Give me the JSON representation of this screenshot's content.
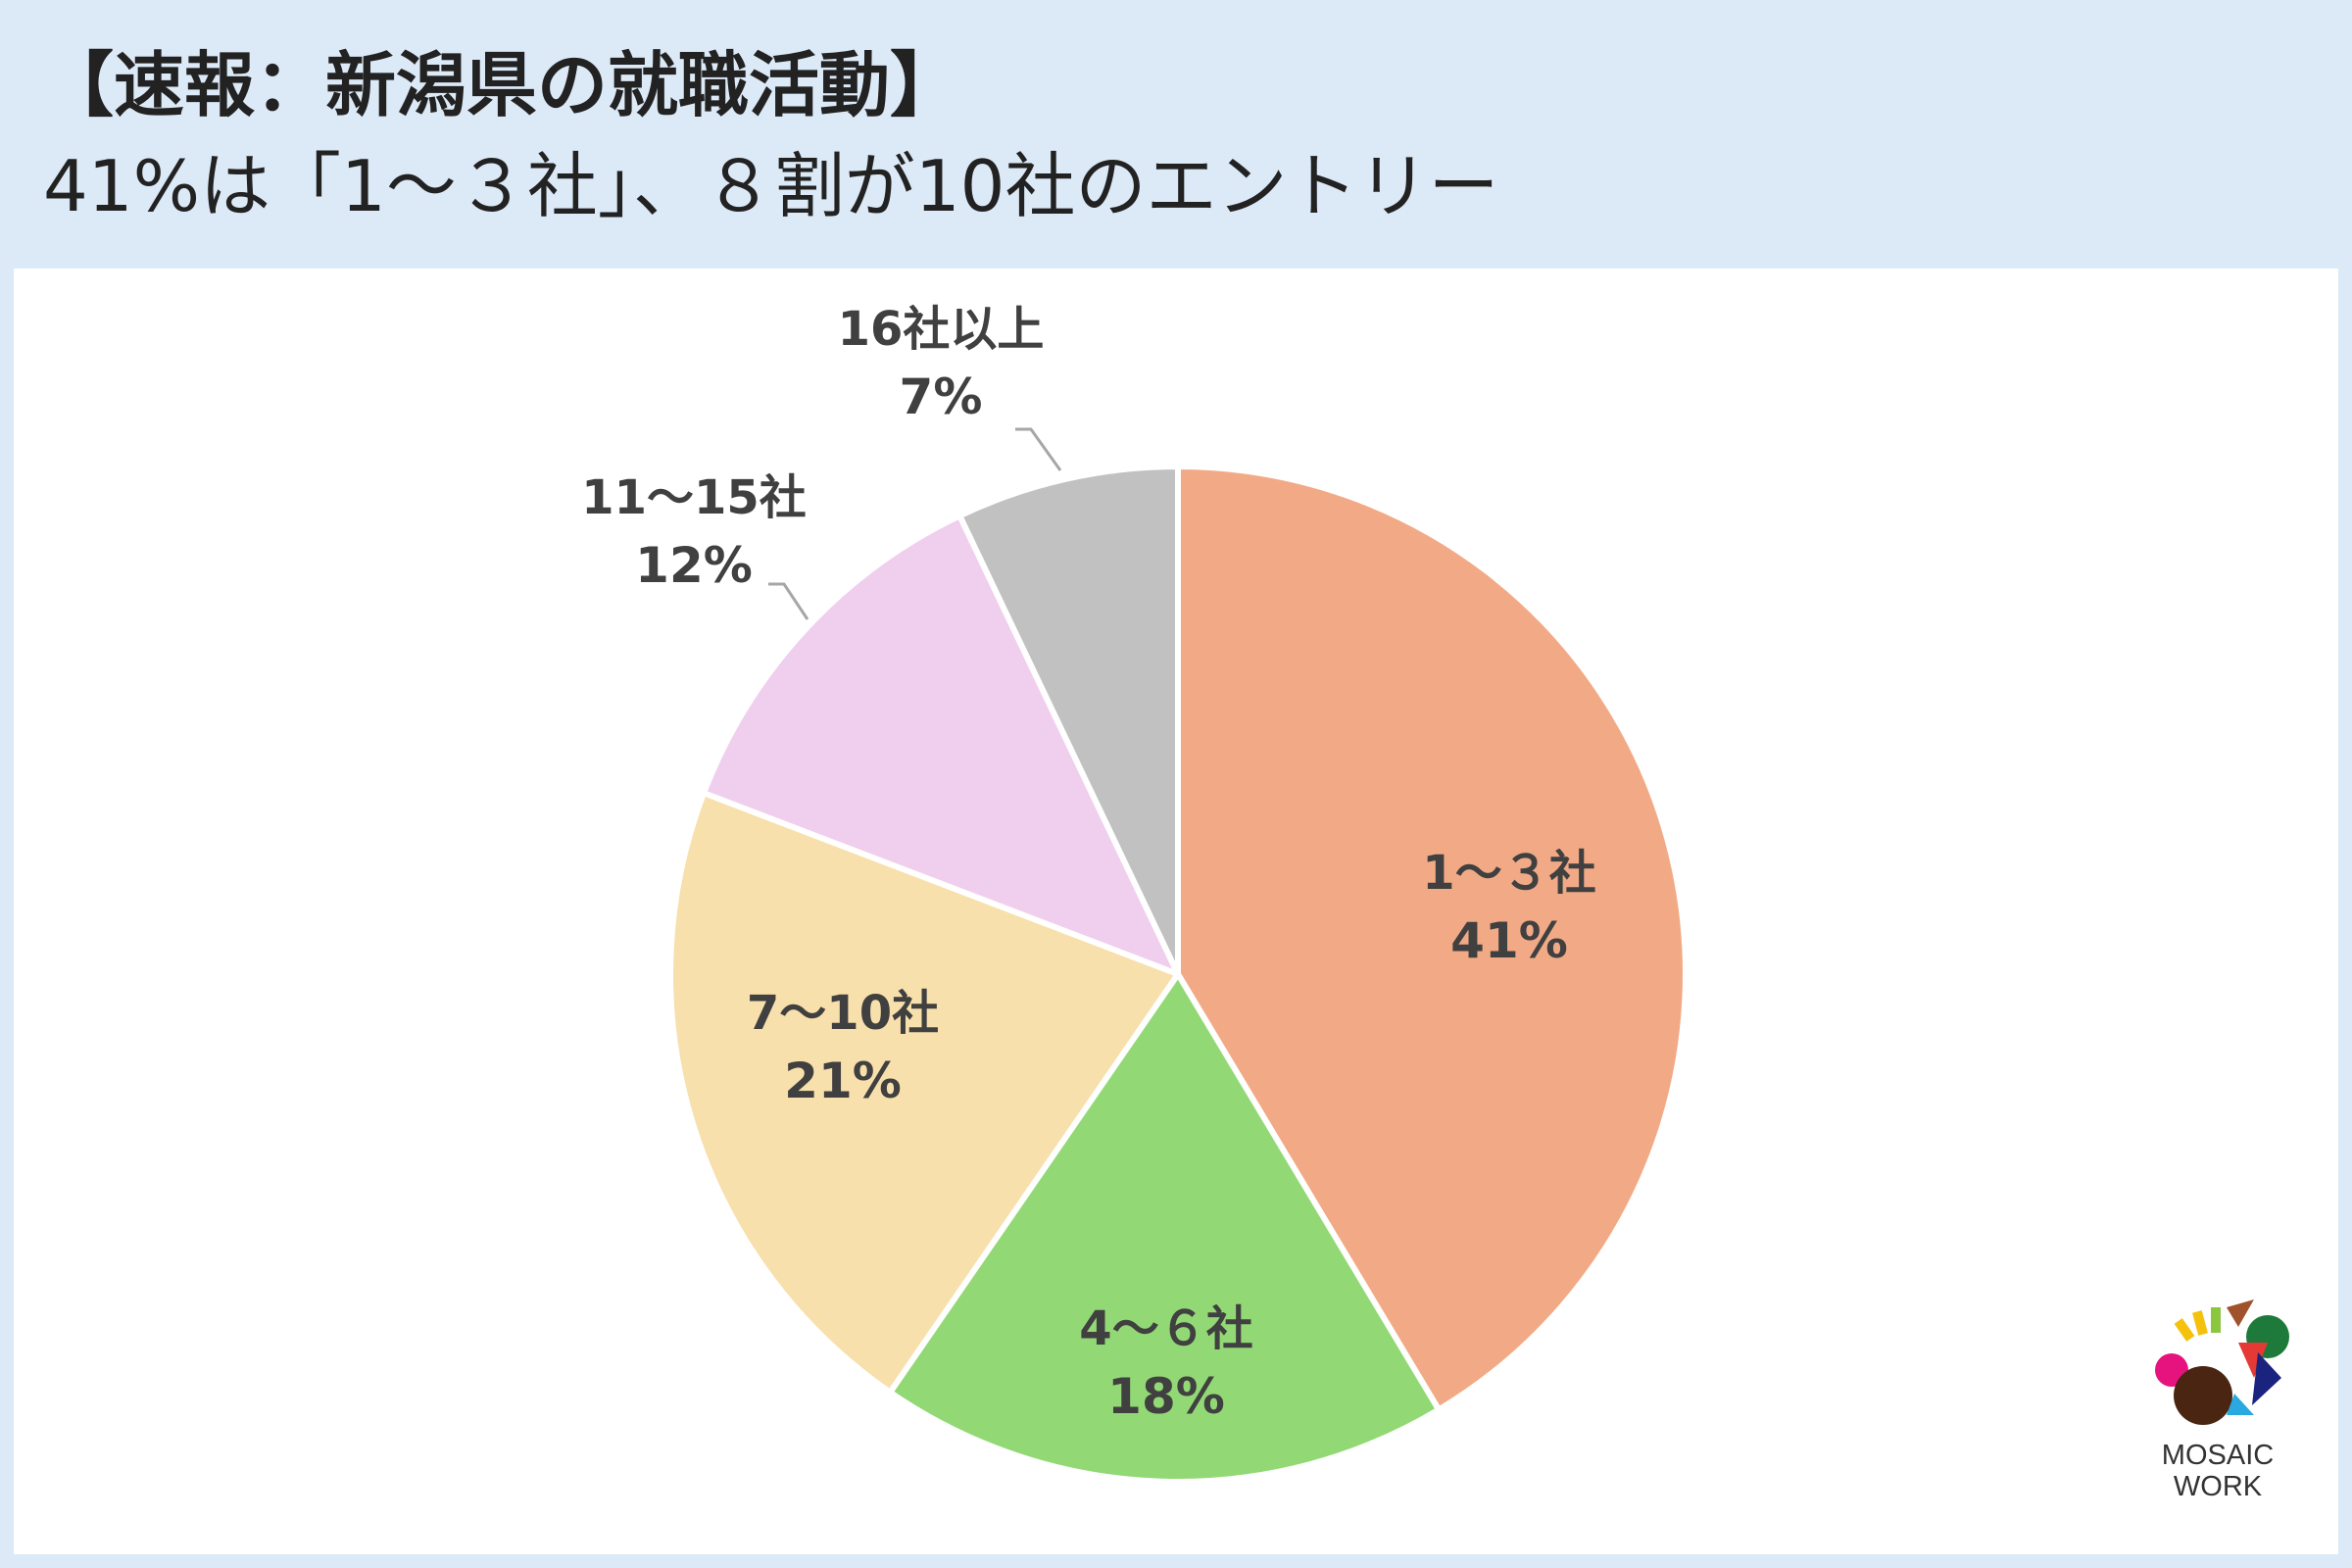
{
  "title": {
    "line1": "【速報：新潟県の就職活動】",
    "line2": "41%は「1～３社」、８割が10社のエントリー"
  },
  "logo": {
    "line1": "MOSAIC",
    "line2": "WORK"
  },
  "chart_data": {
    "type": "pie",
    "title": "41%は「1～３社」、８割が10社のエントリー",
    "categories": [
      "1～３社",
      "4～６社",
      "7～10社",
      "11～15社",
      "16社以上"
    ],
    "values": [
      41,
      18,
      21,
      12,
      7
    ],
    "value_labels": [
      "41%",
      "18%",
      "21%",
      "12%",
      "7%"
    ],
    "colors": [
      "#f2aa86",
      "#92d975",
      "#f8e0ac",
      "#f0cfee",
      "#c1c1c1"
    ],
    "start": "12 o'clock",
    "direction": "clockwise",
    "legend": "none",
    "label_color": "#404040"
  }
}
